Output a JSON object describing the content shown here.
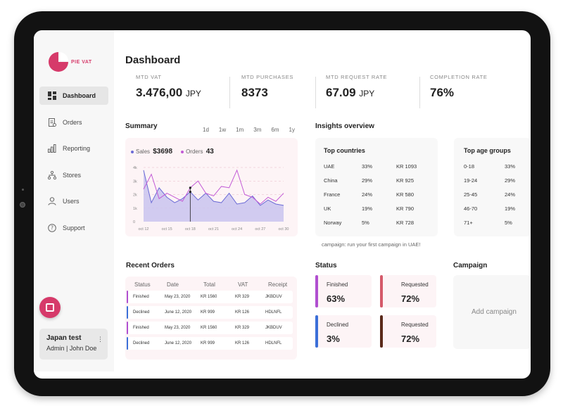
{
  "app": {
    "logo_text": "PIE VAT",
    "brand_color": "#d63a6a"
  },
  "sidebar": {
    "items": [
      {
        "label": "Dashboard",
        "icon": "dashboard-icon",
        "active": true
      },
      {
        "label": "Orders",
        "icon": "orders-icon",
        "active": false
      },
      {
        "label": "Reporting",
        "icon": "bar-chart-icon",
        "active": false
      },
      {
        "label": "Stores",
        "icon": "network-icon",
        "active": false
      },
      {
        "label": "Users",
        "icon": "user-icon",
        "active": false
      },
      {
        "label": "Support",
        "icon": "help-icon",
        "active": false
      }
    ],
    "account": {
      "name": "Japan test",
      "role": "Admin | John Doe",
      "menu_glyph": "⋮"
    }
  },
  "page": {
    "title": "Dashboard"
  },
  "kpis": [
    {
      "label": "MTD VAT",
      "value": "3.476,00",
      "unit": "JPY"
    },
    {
      "label": "MTD PURCHASES",
      "value": "8373",
      "unit": ""
    },
    {
      "label": "MTD REQUEST RATE",
      "value": "67.09",
      "unit": "JPY"
    },
    {
      "label": "COMPLETION RATE",
      "value": "76%",
      "unit": ""
    }
  ],
  "summary": {
    "title": "Summary",
    "ranges": [
      "1d",
      "1w",
      "1m",
      "3m",
      "6m",
      "1y"
    ],
    "legend": [
      {
        "label": "Sales",
        "value": "$3698",
        "color": "#6b6bd6"
      },
      {
        "label": "Orders",
        "value": "43",
        "color": "#c25ad6"
      }
    ]
  },
  "chart_data": {
    "type": "area",
    "x": [
      "oct 12",
      "oct 13",
      "oct 14",
      "oct 15",
      "oct 16",
      "oct 17",
      "oct 18",
      "oct 19",
      "oct 20",
      "oct 21",
      "oct 22",
      "oct 23",
      "oct 24",
      "oct 25",
      "oct 26",
      "oct 27",
      "oct 28",
      "oct 29",
      "oct 30"
    ],
    "xticks": [
      "oct 12",
      "oct 15",
      "oct 18",
      "oct 21",
      "oct 24",
      "oct 27",
      "oct 30"
    ],
    "yticks": [
      "0",
      "1k",
      "2k",
      "3k",
      "4k"
    ],
    "ylim": [
      0,
      4000
    ],
    "series": [
      {
        "name": "Sales",
        "color": "#6b6bd6",
        "values": [
          3800,
          1400,
          2500,
          1800,
          1400,
          1700,
          2200,
          1600,
          2100,
          1500,
          1400,
          2100,
          1300,
          1400,
          1900,
          1200,
          1600,
          1300,
          1200
        ]
      },
      {
        "name": "Orders",
        "color": "#c25ad6",
        "values": [
          2400,
          3500,
          1700,
          2100,
          1800,
          1500,
          2500,
          3000,
          2100,
          1900,
          2600,
          2500,
          3800,
          2000,
          1800,
          1300,
          1800,
          1500,
          2100
        ]
      }
    ]
  },
  "insights": {
    "title": "Insights overview",
    "countries": {
      "title": "Top countries",
      "rows": [
        {
          "country": "UAE",
          "pct": "33%",
          "amount": "KR 1093"
        },
        {
          "country": "China",
          "pct": "29%",
          "amount": "KR 925"
        },
        {
          "country": "France",
          "pct": "24%",
          "amount": "KR 580"
        },
        {
          "country": "UK",
          "pct": "19%",
          "amount": "KR 790"
        },
        {
          "country": "Norway",
          "pct": "5%",
          "amount": "KR 728"
        }
      ]
    },
    "ages": {
      "title": "Top age groups",
      "rows": [
        {
          "group": "0-18",
          "pct": "33%"
        },
        {
          "group": "19-24",
          "pct": "29%"
        },
        {
          "group": "25-45",
          "pct": "24%"
        },
        {
          "group": "46-70",
          "pct": "19%"
        },
        {
          "group": "71+",
          "pct": "5%"
        }
      ]
    },
    "note": "campaign: run your first campaign in UAE!"
  },
  "orders": {
    "title": "Recent Orders",
    "columns": [
      "Status",
      "Date",
      "Total",
      "VAT",
      "Receipt"
    ],
    "rows": [
      {
        "status": "Finished",
        "date": "May 23, 2020",
        "total": "KR 1560",
        "vat": "KR 329",
        "receipt": "JKBDUV",
        "color": "#b04fd0"
      },
      {
        "status": "Declined",
        "date": "June 12, 2020",
        "total": "KR 999",
        "vat": "KR 126",
        "receipt": "HDLNFL",
        "color": "#3b6fd8"
      },
      {
        "status": "Finished",
        "date": "May 23, 2020",
        "total": "KR 1560",
        "vat": "KR 329",
        "receipt": "JKBDUV",
        "color": "#b04fd0"
      },
      {
        "status": "Declined",
        "date": "June 12, 2020",
        "total": "KR 999",
        "vat": "KR 126",
        "receipt": "HDLNFL",
        "color": "#3b6fd8"
      }
    ]
  },
  "status": {
    "title": "Status",
    "cards": [
      {
        "label": "Finished",
        "value": "63%",
        "color": "#b04fd0"
      },
      {
        "label": "Requested",
        "value": "72%",
        "color": "#d45a6a"
      },
      {
        "label": "Declined",
        "value": "3%",
        "color": "#3b6fd8"
      },
      {
        "label": "Requested",
        "value": "72%",
        "color": "#5a2a1a"
      }
    ]
  },
  "campaign": {
    "title": "Campaign",
    "add_label": "Add campaign"
  }
}
